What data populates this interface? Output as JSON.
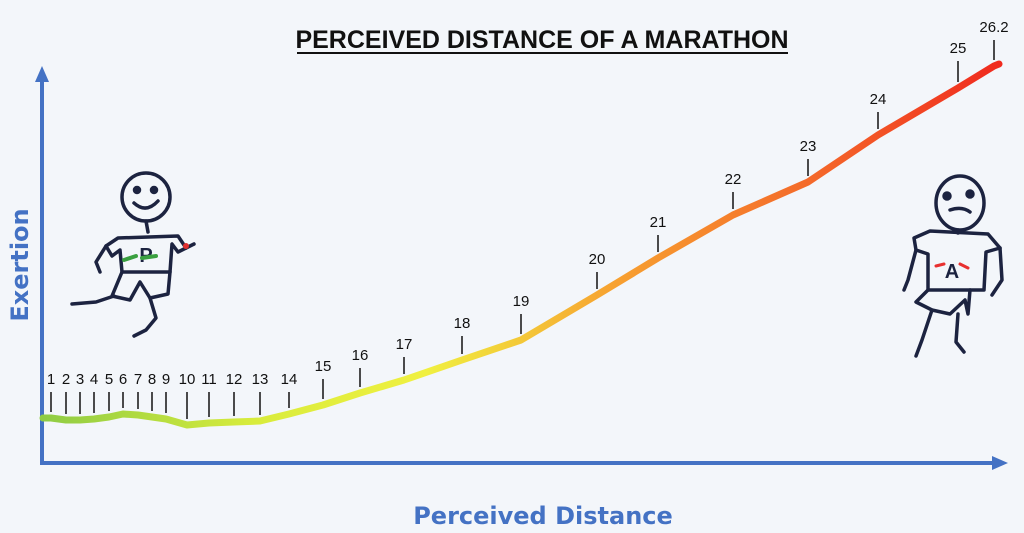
{
  "chart_data": {
    "type": "line",
    "title": "PERCEIVED DISTANCE OF A MARATHON",
    "xlabel": "Perceived Distance",
    "ylabel": "Exertion",
    "grid": false,
    "mile_markers": [
      "1",
      "2",
      "3",
      "4",
      "5",
      "6",
      "7",
      "8",
      "9",
      "10",
      "11",
      "12",
      "13",
      "14",
      "15",
      "16",
      "17",
      "18",
      "19",
      "20",
      "21",
      "22",
      "23",
      "24",
      "25",
      "26.2"
    ],
    "line_colors": [
      "#8fcc44",
      "#d8ec3c",
      "#f0f040",
      "#f7a030",
      "#f46a2a",
      "#f02a1e"
    ],
    "axis_color": "#4472c4"
  },
  "figures": {
    "start_letter": "P",
    "end_letter": "A"
  }
}
